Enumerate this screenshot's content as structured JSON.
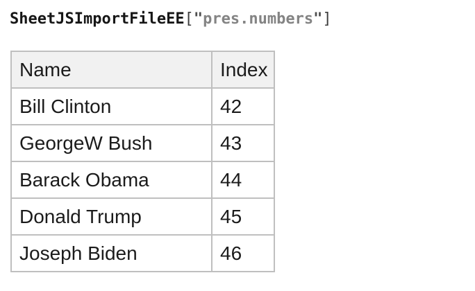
{
  "title": {
    "full_text": "SheetJSImportFileEE[\"pres.numbers\"]",
    "tokens": [
      {
        "text": "SheetJSImportFileEE",
        "color": "#161616",
        "weight": 700
      },
      {
        "text": "[",
        "color": "#3d3d3d",
        "weight": 400
      },
      {
        "text": "\"",
        "color": "#4f4f4f",
        "weight": 700
      },
      {
        "text": "pres.numbers",
        "color": "#848484",
        "weight": 700
      },
      {
        "text": "\"",
        "color": "#4f4f4f",
        "weight": 700
      },
      {
        "text": "]",
        "color": "#3d3d3d",
        "weight": 400
      }
    ]
  },
  "table": {
    "columns": [
      {
        "key": "name",
        "label": "Name"
      },
      {
        "key": "index",
        "label": "Index"
      }
    ],
    "rows": [
      {
        "name": "Bill Clinton",
        "index": "42"
      },
      {
        "name": "GeorgeW Bush",
        "index": "43"
      },
      {
        "name": "Barack Obama",
        "index": "44"
      },
      {
        "name": "Donald Trump",
        "index": "45"
      },
      {
        "name": "Joseph Biden",
        "index": "46"
      }
    ]
  },
  "colors": {
    "page_background": "#ffffff",
    "table_border": "#bfbfbf",
    "header_background": "#f1f1f1",
    "cell_text": "#1b1b1b"
  }
}
